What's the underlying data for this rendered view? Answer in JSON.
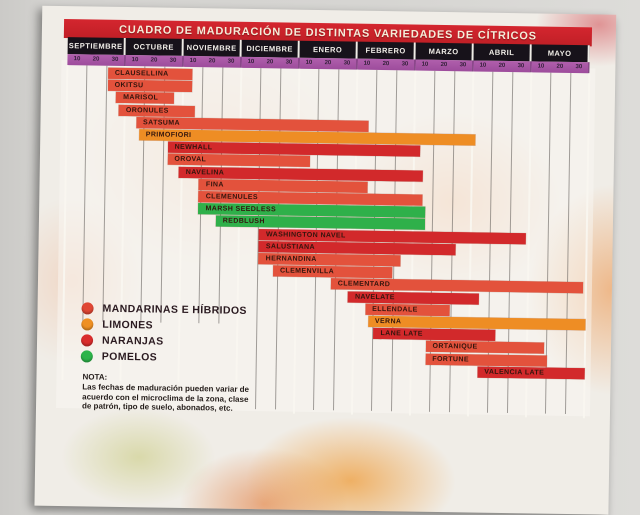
{
  "poster": {
    "title": "CUADRO DE MADURACIÓN DE DISTINTAS VARIEDADES DE CÍTRICOS",
    "months": [
      "SEPTIEMBRE",
      "OCTUBRE",
      "NOVIEMBRE",
      "DICIEMBRE",
      "ENERO",
      "FEBRERO",
      "MARZO",
      "ABRIL",
      "MAYO"
    ],
    "day_ticks": [
      "10",
      "20",
      "30"
    ],
    "legend": [
      {
        "key": "mandarinas",
        "label": "MANDARINAS E HÍBRIDOS",
        "color": "#e04634"
      },
      {
        "key": "limones",
        "label": "LIMONES",
        "color": "#ef9022"
      },
      {
        "key": "naranjas",
        "label": "NARANJAS",
        "color": "#da2c2c"
      },
      {
        "key": "pomelos",
        "label": "POMELOS",
        "color": "#2db44a"
      }
    ],
    "note_title": "NOTA:",
    "note_lines": [
      "Las fechas de maduración pueden variar de",
      "acuerdo con el microclima de la zona, clase",
      "de patrón, tipo de suelo, abonados, etc."
    ]
  },
  "colors": {
    "banner_red": "#c8222b",
    "month_band_black": "#17121a",
    "tick_strip_purple": "#a755a4",
    "bar_mandarinas": "#e3523c",
    "bar_limones": "#ee8d24",
    "bar_naranjas": "#d2292b",
    "bar_pomelos": "#2fb04a",
    "wall_gray": "#d4d3d0"
  },
  "chart_data": {
    "type": "bar",
    "subtype": "gantt-maturation-calendar",
    "title": "CUADRO DE MADURACIÓN DE DISTINTAS VARIEDADES DE CÍTRICOS",
    "x_categories": [
      "SEPTIEMBRE",
      "OCTUBRE",
      "NOVIEMBRE",
      "DICIEMBRE",
      "ENERO",
      "FEBRERO",
      "MARZO",
      "ABRIL",
      "MAYO"
    ],
    "x_scale": {
      "unit": "month_index",
      "origin": "0 = 1 septiembre",
      "max": 9,
      "minor_ticks_days": [
        10,
        20,
        30
      ]
    },
    "legend_position": "bottom-left",
    "grid": true,
    "series": [
      {
        "name": "CLAUSELLINA",
        "category": "mandarinas",
        "start": 0.7,
        "end": 2.15
      },
      {
        "name": "OKITSU",
        "category": "mandarinas",
        "start": 0.7,
        "end": 2.15
      },
      {
        "name": "MARISOL",
        "category": "mandarinas",
        "start": 0.85,
        "end": 1.85
      },
      {
        "name": "ORONULES",
        "category": "mandarinas",
        "start": 0.9,
        "end": 2.2
      },
      {
        "name": "SATSUMA",
        "category": "mandarinas",
        "start": 1.2,
        "end": 5.2
      },
      {
        "name": "PRIMOFIORI",
        "category": "limones",
        "start": 1.25,
        "end": 7.05
      },
      {
        "name": "NEWHALL",
        "category": "naranjas",
        "start": 1.75,
        "end": 6.1
      },
      {
        "name": "OROVAL",
        "category": "mandarinas",
        "start": 1.75,
        "end": 4.2
      },
      {
        "name": "NAVELINA",
        "category": "naranjas",
        "start": 1.95,
        "end": 6.15
      },
      {
        "name": "FINA",
        "category": "mandarinas",
        "start": 2.3,
        "end": 5.2
      },
      {
        "name": "CLEMENULES",
        "category": "mandarinas",
        "start": 2.3,
        "end": 6.15
      },
      {
        "name": "MARSH SEEDLESS",
        "category": "pomelos",
        "start": 2.3,
        "end": 6.2
      },
      {
        "name": "REDBLUSH",
        "category": "pomelos",
        "start": 2.6,
        "end": 6.2
      },
      {
        "name": "WASHINGTON NAVEL",
        "category": "naranjas",
        "start": 3.35,
        "end": 7.95
      },
      {
        "name": "SALUSTIANA",
        "category": "naranjas",
        "start": 3.35,
        "end": 6.75
      },
      {
        "name": "HERNANDINA",
        "category": "mandarinas",
        "start": 3.35,
        "end": 5.8
      },
      {
        "name": "CLEMENVILLA",
        "category": "mandarinas",
        "start": 3.6,
        "end": 5.65
      },
      {
        "name": "CLEMENTARD",
        "category": "mandarinas",
        "start": 4.6,
        "end": 8.95
      },
      {
        "name": "NAVELATE",
        "category": "naranjas",
        "start": 4.9,
        "end": 7.15
      },
      {
        "name": "ELLENDALE",
        "category": "mandarinas",
        "start": 5.2,
        "end": 6.65
      },
      {
        "name": "VERNA",
        "category": "limones",
        "start": 5.25,
        "end": 9.0
      },
      {
        "name": "LANE LATE",
        "category": "naranjas",
        "start": 5.35,
        "end": 7.45
      },
      {
        "name": "ORTANIQUE",
        "category": "mandarinas",
        "start": 6.25,
        "end": 8.3
      },
      {
        "name": "FORTUNE",
        "category": "mandarinas",
        "start": 6.25,
        "end": 8.35
      },
      {
        "name": "VALENCIA LATE",
        "category": "naranjas",
        "start": 7.15,
        "end": 9.0
      }
    ]
  }
}
